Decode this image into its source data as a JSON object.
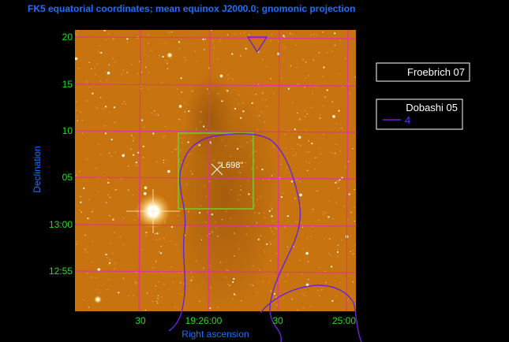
{
  "title": "FK5 equatorial coordinates; mean equinox J2000.0; gnomonic projection",
  "axes": {
    "ylabel": "Declination",
    "xlabel": "Right ascension",
    "y_ticks": [
      "20",
      "15",
      "10",
      "05",
      "13:00",
      "12:55"
    ],
    "x_ticks": [
      "30",
      "19:26:00",
      "30",
      "25:00"
    ]
  },
  "source_label": "\"L698\"",
  "legend": {
    "box1": {
      "label": "Froebrich 07"
    },
    "box2": {
      "label": "Dobashi 05",
      "entry_value": "4"
    }
  },
  "colors": {
    "background": "#000000",
    "image": "#c77410",
    "grid": "#e0339b",
    "contour": "#6b23d6",
    "box": "#6fcf2d",
    "title": "#1e6fff",
    "ticks": "#22dd22"
  }
}
